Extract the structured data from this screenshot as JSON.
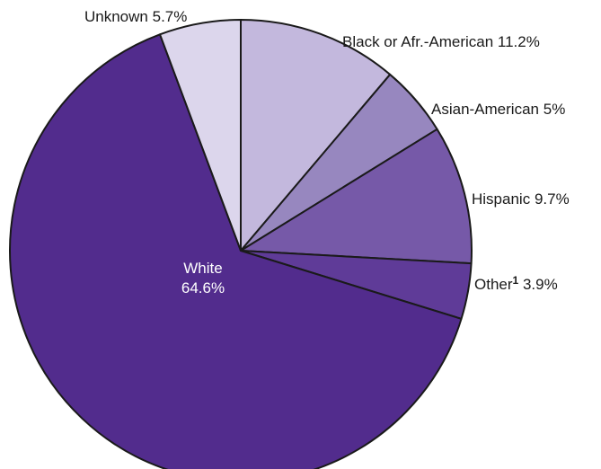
{
  "chart_data": {
    "type": "pie",
    "title": "",
    "slices": [
      {
        "key": "black",
        "label": "Black or Afr.-American",
        "value_text": "11.2%",
        "value": 11.2,
        "color": "#c3b8dd"
      },
      {
        "key": "asian",
        "label": "Asian-American",
        "value_text": "5%",
        "value": 5.0,
        "color": "#9787bf"
      },
      {
        "key": "hispanic",
        "label": "Hispanic",
        "value_text": "9.7%",
        "value": 9.7,
        "color": "#7659a8"
      },
      {
        "key": "other",
        "label": "Other",
        "footnote": "1",
        "value_text": "3.9%",
        "value": 3.9,
        "color": "#5f3b98"
      },
      {
        "key": "white",
        "label": "White",
        "value_text": "64.6%",
        "value": 64.6,
        "color": "#522c8d"
      },
      {
        "key": "unknown",
        "label": "Unknown",
        "value_text": "5.7%",
        "value": 5.7,
        "color": "#dcd6ec"
      }
    ]
  }
}
